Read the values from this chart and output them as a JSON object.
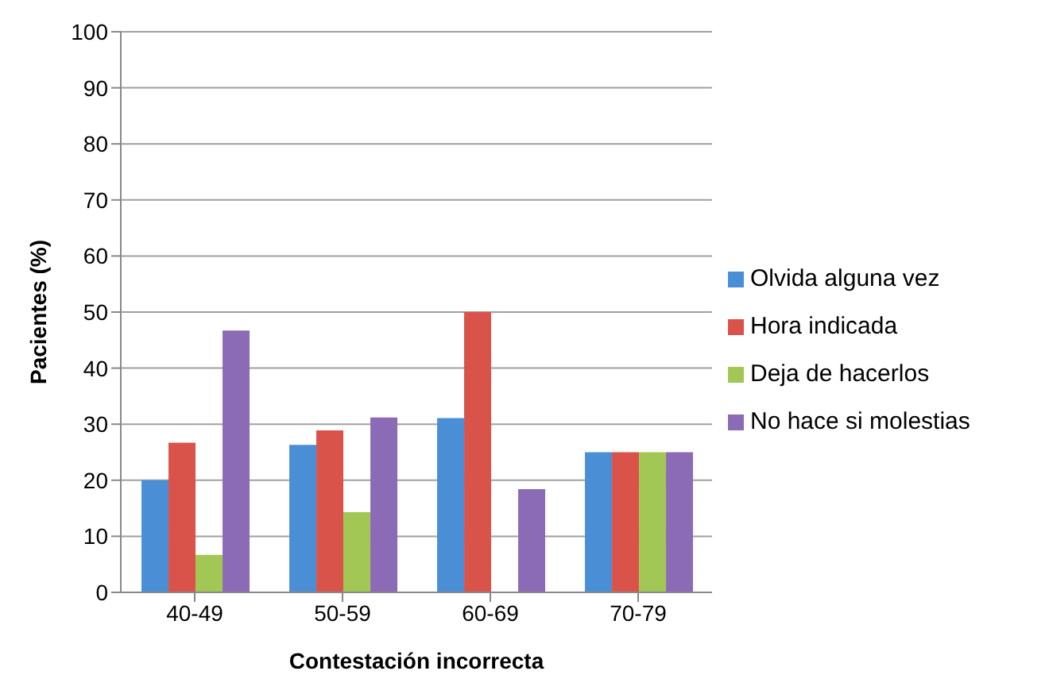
{
  "chart_data": {
    "type": "bar",
    "xlabel": "Contestación incorrecta",
    "ylabel": "Pacientes (%)",
    "categories": [
      "40-49",
      "50-59",
      "60-69",
      "70-79"
    ],
    "series": [
      {
        "name": "Olvida alguna vez",
        "color": "#4a8fd6",
        "values": [
          20,
          26.3,
          31.1,
          25
        ]
      },
      {
        "name": "Hora indicada",
        "color": "#d9534a",
        "values": [
          26.7,
          28.9,
          50,
          25
        ]
      },
      {
        "name": "Deja de hacerlos",
        "color": "#a3c755",
        "values": [
          6.7,
          14.3,
          0,
          25
        ]
      },
      {
        "name": "No hace si molestias",
        "color": "#8b6bb5",
        "values": [
          46.7,
          31.2,
          18.4,
          25
        ]
      }
    ],
    "ylim": [
      0,
      100
    ],
    "yticks": [
      0,
      10,
      20,
      30,
      40,
      50,
      60,
      70,
      80,
      90,
      100
    ],
    "grid": "y",
    "legend": "right"
  }
}
